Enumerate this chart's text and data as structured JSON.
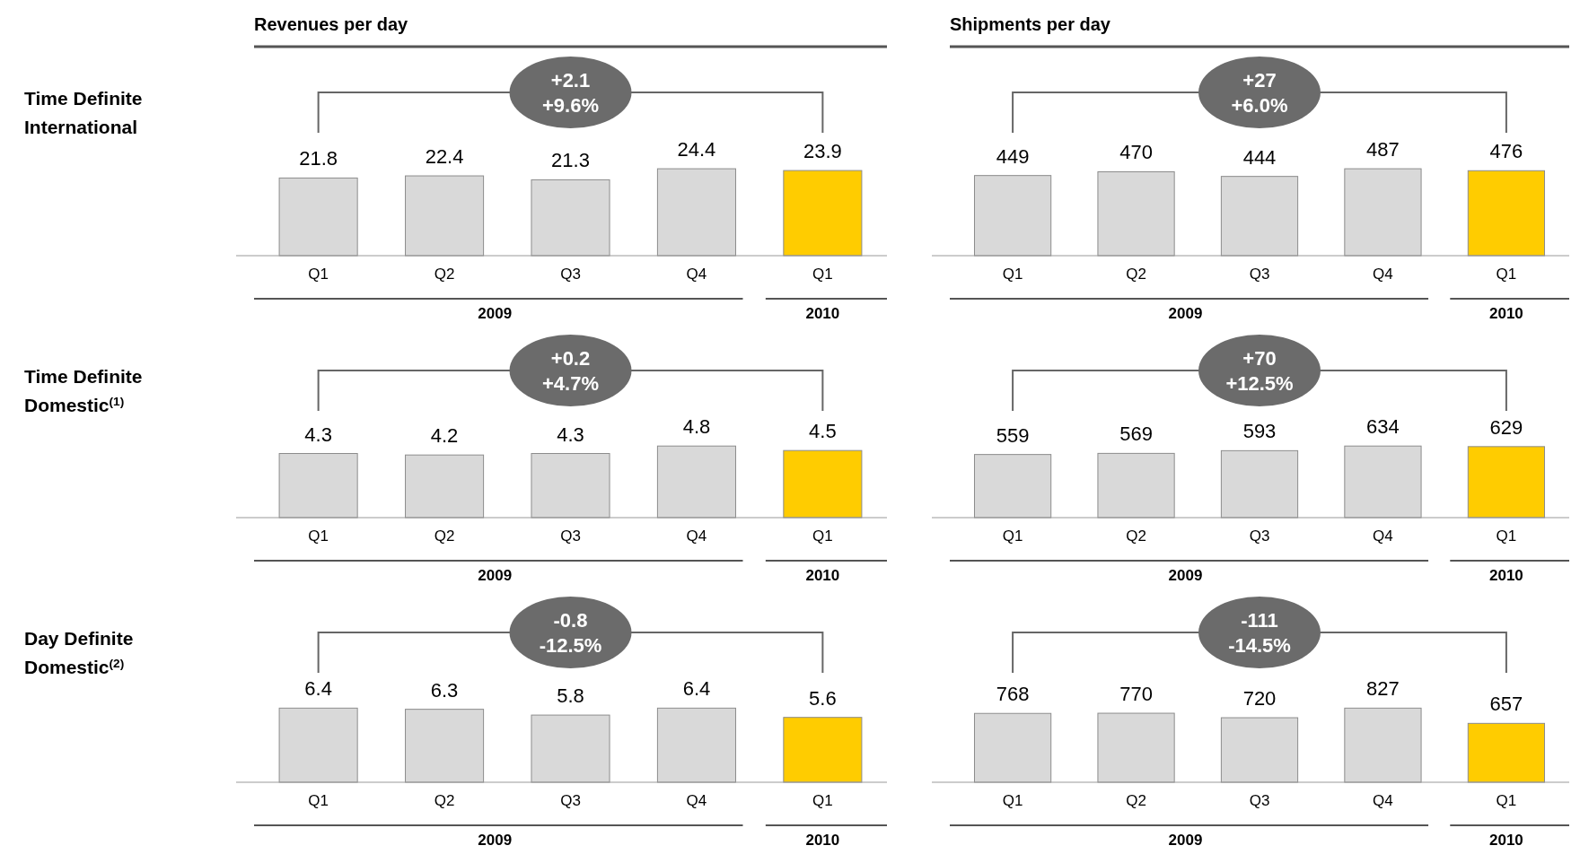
{
  "chart_data": [
    {
      "type": "bar",
      "title": "Revenues per day",
      "ylabel": "Time Definite International",
      "categories": [
        "Q1",
        "Q2",
        "Q3",
        "Q4",
        "Q1"
      ],
      "values": [
        21.8,
        22.4,
        21.3,
        24.4,
        23.9
      ],
      "colors": [
        "#d9d9d9",
        "#d9d9d9",
        "#d9d9d9",
        "#d9d9d9",
        "#ffcc00"
      ],
      "data_labels": true,
      "annotations": [
        "+2.1",
        "+9.6%",
        "2009",
        "2010"
      ]
    },
    {
      "type": "bar",
      "title": "Shipments per day",
      "categories": [
        "Q1",
        "Q2",
        "Q3",
        "Q4",
        "Q1"
      ],
      "values": [
        449,
        470,
        444,
        487,
        476
      ],
      "colors": [
        "#d9d9d9",
        "#d9d9d9",
        "#d9d9d9",
        "#d9d9d9",
        "#ffcc00"
      ],
      "data_labels": true,
      "annotations": [
        "+27",
        "+6.0%",
        "2009",
        "2010"
      ]
    },
    {
      "type": "bar",
      "ylabel": "Time Definite Domestic$^{(1)}$",
      "categories": [
        "Q1",
        "Q2",
        "Q3",
        "Q4",
        "Q1"
      ],
      "values": [
        4.3,
        4.2,
        4.3,
        4.8,
        4.5
      ],
      "colors": [
        "#d9d9d9",
        "#d9d9d9",
        "#d9d9d9",
        "#d9d9d9",
        "#ffcc00"
      ],
      "data_labels": true,
      "annotations": [
        "+0.2",
        "+4.7%",
        "2009",
        "2010"
      ]
    },
    {
      "type": "bar",
      "categories": [
        "Q1",
        "Q2",
        "Q3",
        "Q4",
        "Q1"
      ],
      "values": [
        559,
        569,
        593,
        634,
        629
      ],
      "colors": [
        "#d9d9d9",
        "#d9d9d9",
        "#d9d9d9",
        "#d9d9d9",
        "#ffcc00"
      ],
      "data_labels": true,
      "annotations": [
        "+70",
        "+12.5%",
        "2009",
        "2010"
      ]
    },
    {
      "type": "bar",
      "ylabel": "Day Definite Domestic$^{(2)}$",
      "categories": [
        "Q1",
        "Q2",
        "Q3",
        "Q4",
        "Q1"
      ],
      "values": [
        6.4,
        6.3,
        5.8,
        6.4,
        5.6
      ],
      "colors": [
        "#d9d9d9",
        "#d9d9d9",
        "#d9d9d9",
        "#d9d9d9",
        "#ffcc00"
      ],
      "data_labels": true,
      "annotations": [
        "-0.8",
        "-12.5%",
        "2009",
        "2010"
      ]
    },
    {
      "type": "bar",
      "categories": [
        "Q1",
        "Q2",
        "Q3",
        "Q4",
        "Q1"
      ],
      "values": [
        768,
        770,
        720,
        827,
        657
      ],
      "colors": [
        "#d9d9d9",
        "#d9d9d9",
        "#d9d9d9",
        "#d9d9d9",
        "#ffcc00"
      ],
      "data_labels": true,
      "annotations": [
        "-111",
        "-14.5%",
        "2009",
        "2010"
      ]
    }
  ]
}
